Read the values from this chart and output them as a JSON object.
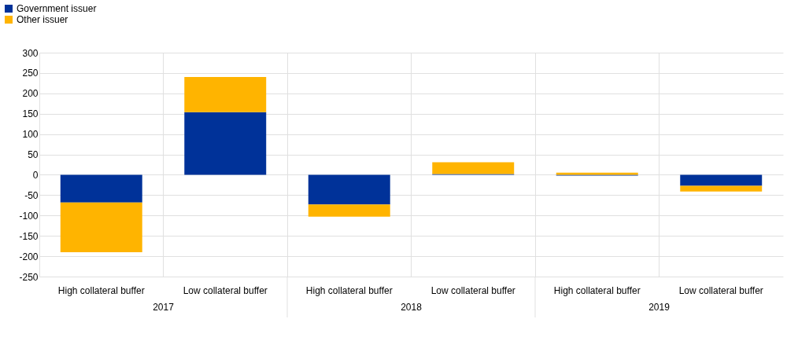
{
  "chart_data": {
    "type": "bar",
    "stacked": true,
    "categories": [
      "High collateral buffer",
      "Low collateral buffer",
      "High collateral buffer",
      "Low collateral buffer",
      "High collateral buffer",
      "Low collateral buffer"
    ],
    "series": [
      {
        "name": "Government issuer",
        "color": "#003299",
        "values": [
          -68,
          154,
          -73,
          2,
          -2,
          -27
        ]
      },
      {
        "name": "Other issuer",
        "color": "#ffb400",
        "values": [
          -122,
          86,
          -30,
          29,
          5,
          -14
        ]
      }
    ],
    "ylim": [
      -250,
      300
    ],
    "yticks": [
      -250,
      -200,
      -150,
      -100,
      -50,
      0,
      50,
      100,
      150,
      200,
      250,
      300
    ],
    "grid": true,
    "legend": "top left",
    "annotations": [
      "2017",
      "2018",
      "2019"
    ]
  }
}
